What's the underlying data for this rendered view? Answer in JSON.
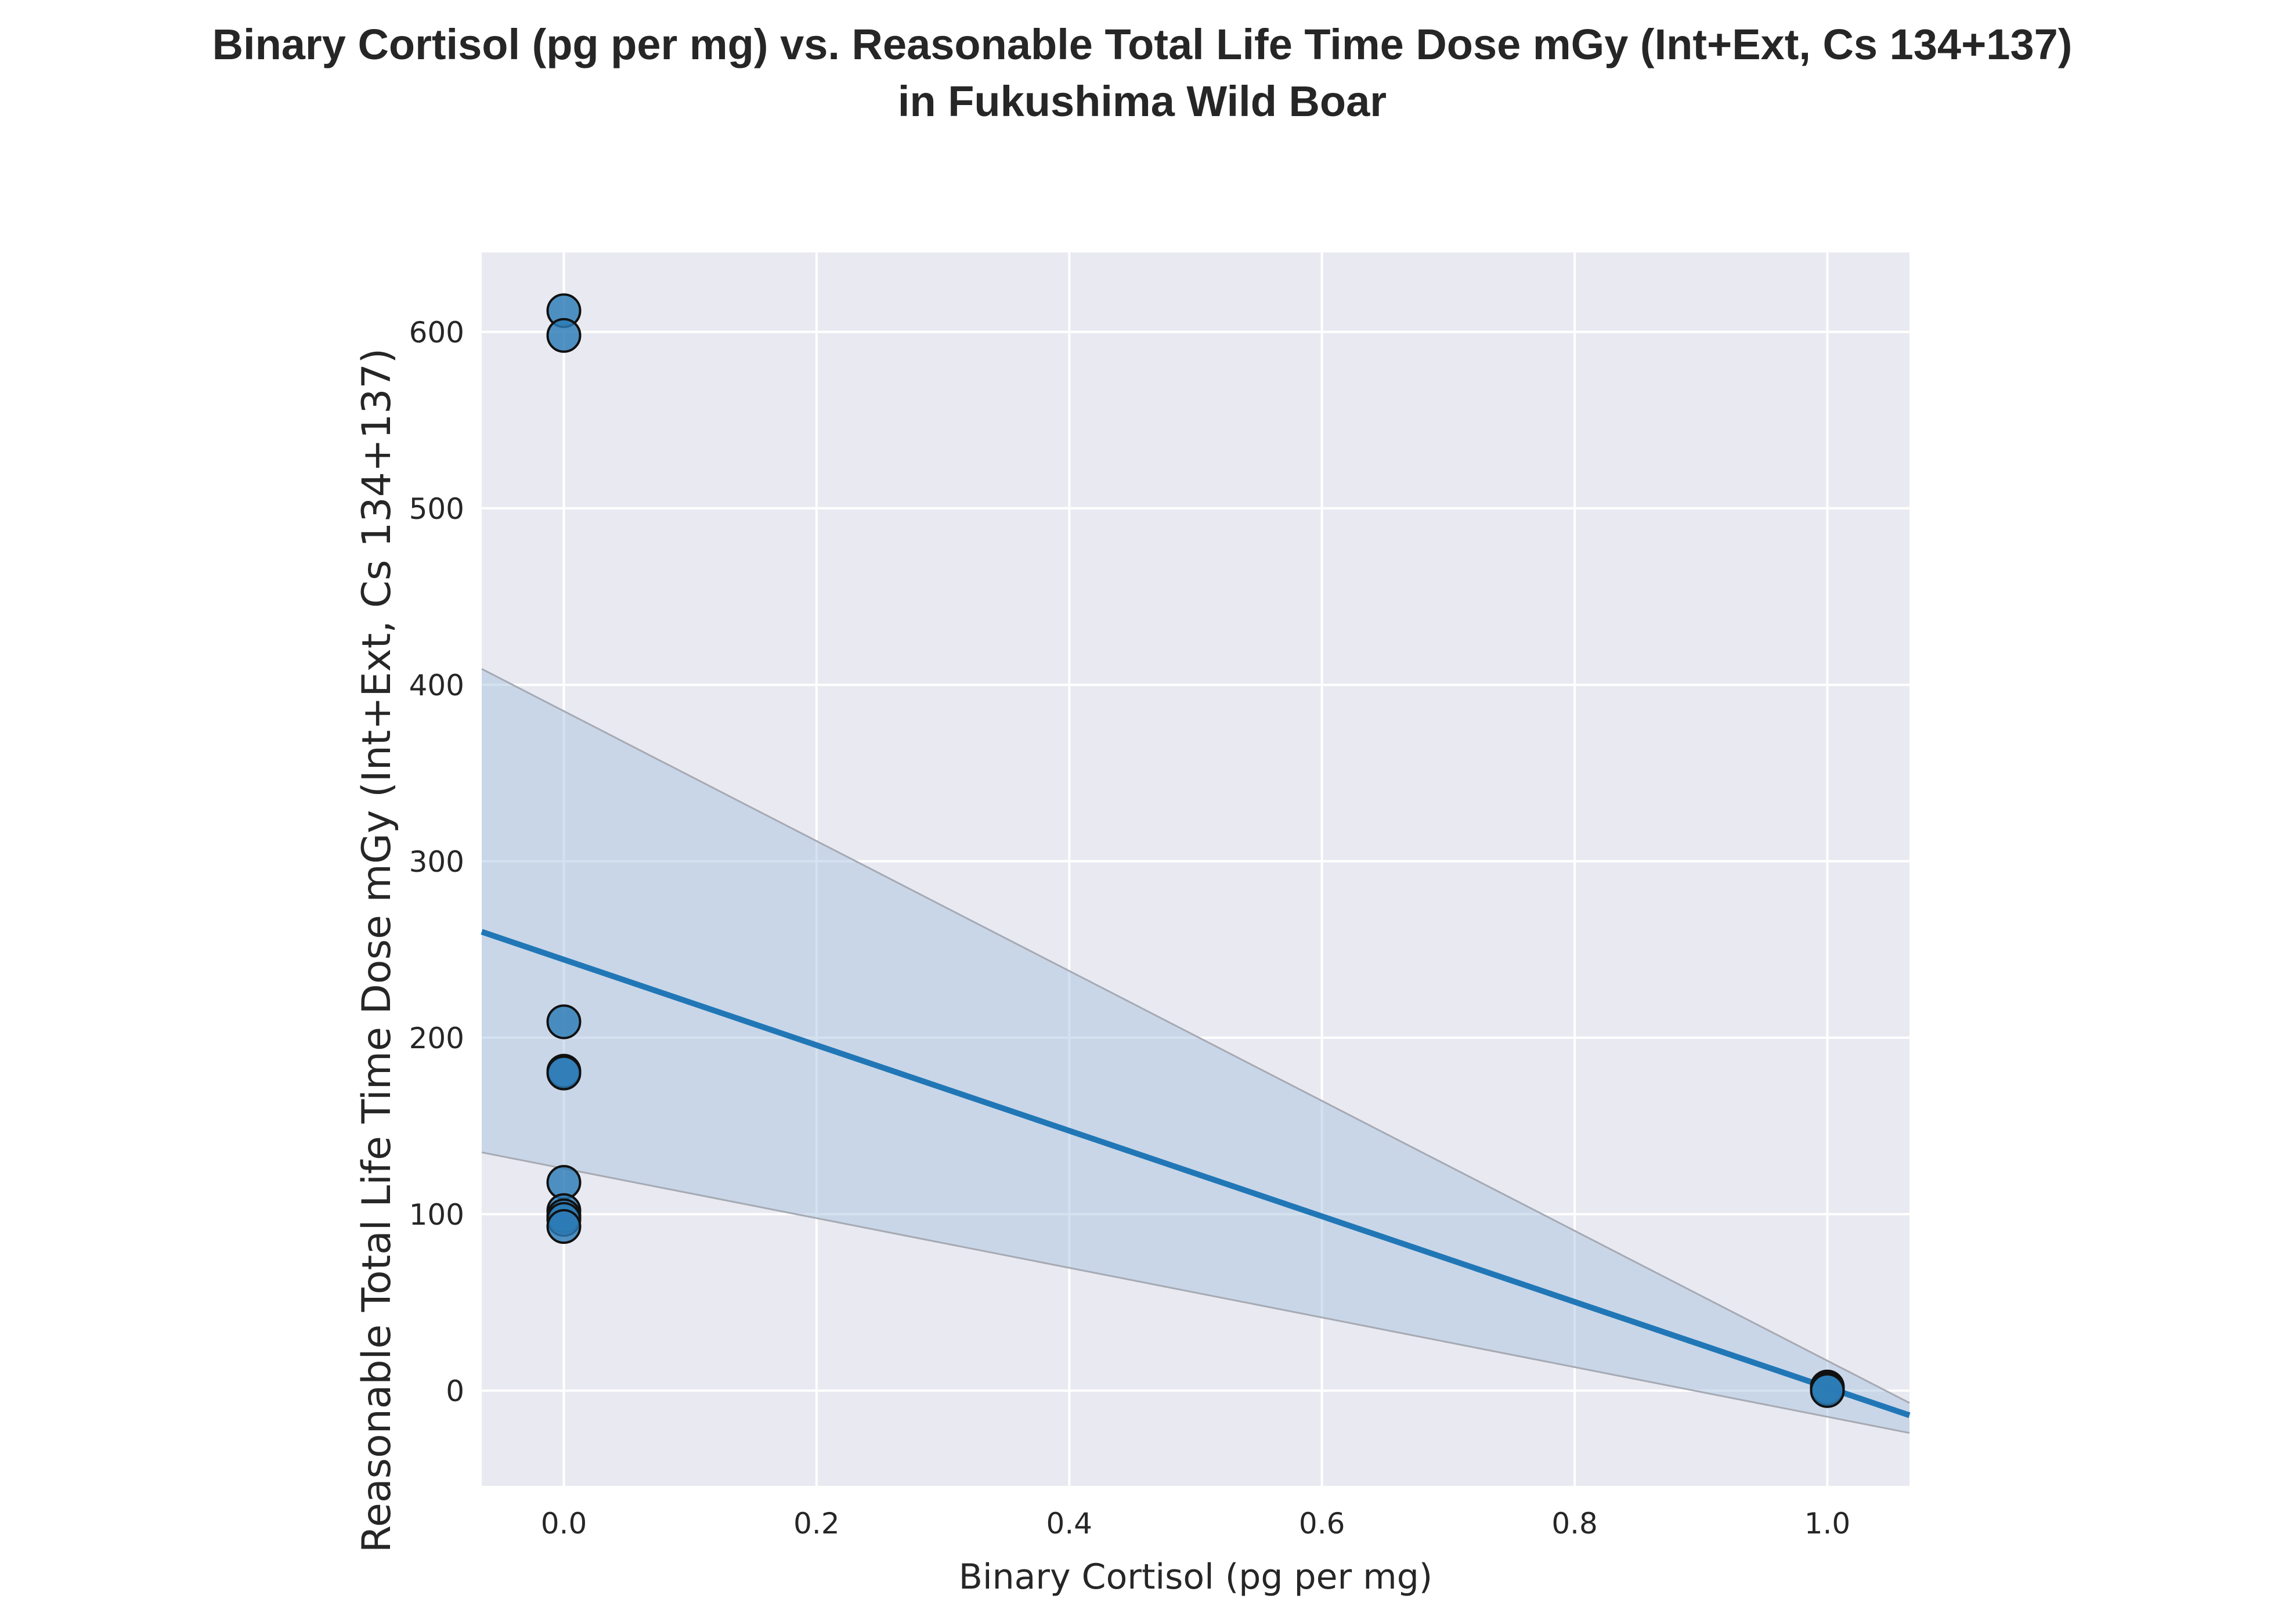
{
  "chart_data": {
    "type": "scatter",
    "title_lines": [
      "Binary Cortisol (pg per mg) vs. Reasonable Total Life Time Dose mGy (Int+Ext, Cs 134+137)",
      "in Fukushima Wild Boar"
    ],
    "xlabel": "Binary Cortisol (pg per mg)",
    "ylabel": "Reasonable Total Life Time Dose mGy (Int+Ext, Cs 134+137)",
    "xlim": [
      -0.065,
      1.065
    ],
    "ylim": [
      -54,
      645
    ],
    "x_ticks": [
      0.0,
      0.2,
      0.4,
      0.6,
      0.8,
      1.0
    ],
    "x_tick_labels": [
      "0.0",
      "0.2",
      "0.4",
      "0.6",
      "0.8",
      "1.0"
    ],
    "y_ticks": [
      0,
      100,
      200,
      300,
      400,
      500,
      600
    ],
    "y_tick_labels": [
      "0",
      "100",
      "200",
      "300",
      "400",
      "500",
      "600"
    ],
    "grid": true,
    "background_color": "#e9e9f1",
    "grid_color": "#ffffff",
    "point_color": "#2c7bb6",
    "point_edge_color": "#111111",
    "line_color": "#2177b6",
    "band_color": "#a9c4df",
    "band_edge_color": "#a6aab3",
    "points": [
      {
        "x": 0,
        "y": 612
      },
      {
        "x": 0,
        "y": 598
      },
      {
        "x": 0,
        "y": 209
      },
      {
        "x": 0,
        "y": 181
      },
      {
        "x": 0,
        "y": 180
      },
      {
        "x": 0,
        "y": 118
      },
      {
        "x": 0,
        "y": 102
      },
      {
        "x": 0,
        "y": 99
      },
      {
        "x": 0,
        "y": 97
      },
      {
        "x": 0,
        "y": 93
      },
      {
        "x": 1,
        "y": 2
      },
      {
        "x": 1,
        "y": 1
      },
      {
        "x": 1,
        "y": 0
      }
    ],
    "regression": {
      "x": [
        -0.065,
        1.065
      ],
      "y": [
        260,
        -14
      ]
    },
    "confidence_band": {
      "x": [
        -0.065,
        1.065
      ],
      "upper": [
        409,
        -7
      ],
      "lower": [
        135,
        -24
      ]
    }
  }
}
